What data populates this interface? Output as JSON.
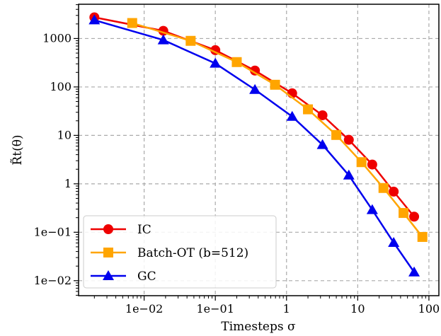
{
  "chart_data": {
    "type": "line",
    "title": "",
    "xlabel": "Timesteps σ",
    "ylabel": "R̃t(θ)",
    "x_scale": "log",
    "y_scale": "log",
    "xlim": [
      0.0012,
      138
    ],
    "ylim": [
      0.0049,
      5100
    ],
    "grid": true,
    "legend_position": "lower-left",
    "x_ticks": [
      {
        "value": 0.01,
        "label": "1e−02"
      },
      {
        "value": 0.1,
        "label": "1e−01"
      },
      {
        "value": 1,
        "label": "1"
      },
      {
        "value": 10,
        "label": "10"
      },
      {
        "value": 100,
        "label": "100"
      }
    ],
    "y_ticks": [
      {
        "value": 1000,
        "label": "1000"
      },
      {
        "value": 100,
        "label": "100"
      },
      {
        "value": 10,
        "label": "10"
      },
      {
        "value": 1,
        "label": "1"
      },
      {
        "value": 0.1,
        "label": "1e−01"
      },
      {
        "value": 0.01,
        "label": "1e−02"
      }
    ],
    "series": [
      {
        "name": "IC",
        "color": "#ee0000",
        "marker": "circle",
        "x": [
          0.002,
          0.0186,
          0.1,
          0.36,
          1.2,
          3.2,
          7.5,
          16,
          32,
          62
        ],
        "y": [
          2740,
          1440,
          575,
          218,
          74,
          26,
          8.1,
          2.5,
          0.69,
          0.21
        ]
      },
      {
        "name": "Batch-OT (b=512)",
        "color": "#ffa500",
        "marker": "square",
        "x": [
          0.0068,
          0.045,
          0.2,
          0.69,
          2.0,
          5.0,
          11.3,
          23,
          44,
          81
        ],
        "y": [
          2090,
          895,
          326,
          111,
          34.5,
          10.2,
          2.8,
          0.82,
          0.25,
          0.08
        ]
      },
      {
        "name": "GC",
        "color": "#0000ee",
        "marker": "triangle",
        "x": [
          0.002,
          0.0186,
          0.1,
          0.36,
          1.2,
          3.2,
          7.5,
          16,
          32,
          62
        ],
        "y": [
          2400,
          930,
          306,
          88,
          24.5,
          6.4,
          1.5,
          0.29,
          0.061,
          0.015
        ]
      }
    ]
  }
}
